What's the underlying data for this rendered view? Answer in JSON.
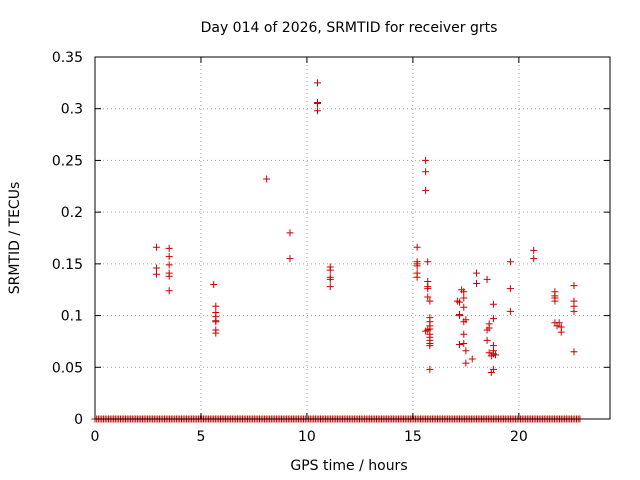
{
  "chart_data": {
    "type": "scatter",
    "title": "Day 014 of 2026, SRMTID for receiver grts",
    "xlabel": "GPS time / hours",
    "ylabel": "SRMTID / TECUs",
    "xlim": [
      0,
      24.3
    ],
    "ylim": [
      0,
      0.35
    ],
    "x_ticks": [
      0,
      5,
      10,
      15,
      20
    ],
    "x_tick_labels": [
      "0",
      "5",
      "10",
      "15",
      "20"
    ],
    "y_ticks": [
      0,
      0.05,
      0.1,
      0.15,
      0.2,
      0.25,
      0.3,
      0.35
    ],
    "y_tick_labels": [
      "0",
      "0.05",
      "0.1",
      "0.15",
      "0.2",
      "0.25",
      "0.3",
      "0.35"
    ],
    "grid": true,
    "marker": "plus",
    "marker_color": "#cc0000",
    "zero_baseline": {
      "y": 0,
      "x_start": 0,
      "x_end": 22.9,
      "step": 0.08
    },
    "series": [
      {
        "name": "SRMTID",
        "points": [
          [
            2.9,
            0.166
          ],
          [
            2.9,
            0.146
          ],
          [
            2.9,
            0.14
          ],
          [
            3.5,
            0.165
          ],
          [
            3.5,
            0.157
          ],
          [
            3.5,
            0.149
          ],
          [
            3.5,
            0.141
          ],
          [
            3.5,
            0.138
          ],
          [
            3.5,
            0.124
          ],
          [
            5.6,
            0.13
          ],
          [
            5.7,
            0.109
          ],
          [
            5.7,
            0.103
          ],
          [
            5.7,
            0.099
          ],
          [
            5.7,
            0.095
          ],
          [
            5.7,
            0.094
          ],
          [
            5.7,
            0.086
          ],
          [
            5.7,
            0.083
          ],
          [
            8.1,
            0.232
          ],
          [
            9.2,
            0.18
          ],
          [
            9.2,
            0.155
          ],
          [
            10.5,
            0.325
          ],
          [
            10.5,
            0.306
          ],
          [
            10.5,
            0.305
          ],
          [
            10.5,
            0.298
          ],
          [
            11.1,
            0.147
          ],
          [
            11.1,
            0.144
          ],
          [
            11.1,
            0.137
          ],
          [
            11.1,
            0.135
          ],
          [
            11.1,
            0.128
          ],
          [
            15.2,
            0.166
          ],
          [
            15.2,
            0.152
          ],
          [
            15.2,
            0.15
          ],
          [
            15.2,
            0.148
          ],
          [
            15.2,
            0.141
          ],
          [
            15.2,
            0.137
          ],
          [
            15.6,
            0.25
          ],
          [
            15.6,
            0.239
          ],
          [
            15.6,
            0.221
          ],
          [
            15.7,
            0.152
          ],
          [
            15.7,
            0.133
          ],
          [
            15.7,
            0.128
          ],
          [
            15.7,
            0.126
          ],
          [
            15.7,
            0.118
          ],
          [
            15.8,
            0.114
          ],
          [
            15.8,
            0.098
          ],
          [
            15.8,
            0.094
          ],
          [
            15.8,
            0.09
          ],
          [
            15.8,
            0.087
          ],
          [
            15.7,
            0.086
          ],
          [
            15.6,
            0.085
          ],
          [
            15.8,
            0.082
          ],
          [
            15.8,
            0.079
          ],
          [
            15.8,
            0.076
          ],
          [
            15.8,
            0.073
          ],
          [
            15.8,
            0.071
          ],
          [
            15.8,
            0.048
          ],
          [
            17.1,
            0.114
          ],
          [
            17.2,
            0.113
          ],
          [
            17.3,
            0.125
          ],
          [
            17.4,
            0.123
          ],
          [
            17.4,
            0.117
          ],
          [
            17.4,
            0.108
          ],
          [
            17.2,
            0.101
          ],
          [
            17.2,
            0.1
          ],
          [
            17.5,
            0.096
          ],
          [
            17.4,
            0.094
          ],
          [
            17.4,
            0.082
          ],
          [
            17.4,
            0.073
          ],
          [
            17.2,
            0.072
          ],
          [
            17.5,
            0.066
          ],
          [
            17.5,
            0.054
          ],
          [
            17.8,
            0.058
          ],
          [
            18.0,
            0.141
          ],
          [
            18.0,
            0.131
          ],
          [
            18.5,
            0.135
          ],
          [
            18.8,
            0.111
          ],
          [
            18.8,
            0.097
          ],
          [
            18.6,
            0.092
          ],
          [
            18.5,
            0.086
          ],
          [
            18.6,
            0.088
          ],
          [
            18.5,
            0.076
          ],
          [
            18.8,
            0.071
          ],
          [
            18.8,
            0.066
          ],
          [
            18.6,
            0.064
          ],
          [
            18.8,
            0.063
          ],
          [
            18.9,
            0.062
          ],
          [
            18.7,
            0.061
          ],
          [
            18.8,
            0.048
          ],
          [
            18.7,
            0.045
          ],
          [
            19.6,
            0.152
          ],
          [
            19.6,
            0.126
          ],
          [
            19.6,
            0.104
          ],
          [
            20.7,
            0.163
          ],
          [
            20.7,
            0.155
          ],
          [
            21.7,
            0.123
          ],
          [
            21.7,
            0.119
          ],
          [
            21.7,
            0.117
          ],
          [
            21.7,
            0.114
          ],
          [
            21.7,
            0.093
          ],
          [
            21.8,
            0.09
          ],
          [
            21.9,
            0.093
          ],
          [
            22.0,
            0.089
          ],
          [
            22.0,
            0.084
          ],
          [
            22.6,
            0.129
          ],
          [
            22.6,
            0.114
          ],
          [
            22.6,
            0.109
          ],
          [
            22.6,
            0.104
          ],
          [
            22.6,
            0.065
          ]
        ]
      }
    ]
  }
}
